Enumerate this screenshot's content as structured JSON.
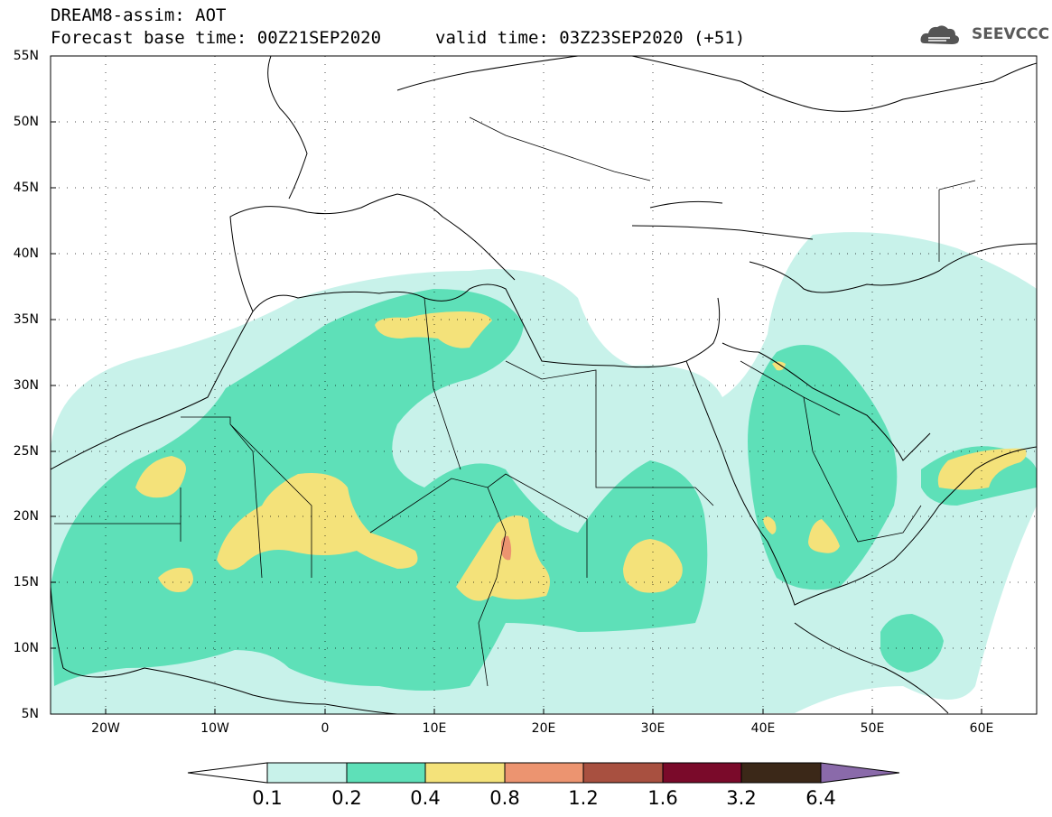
{
  "header": {
    "title": "DREAM8-assim: AOT",
    "base_time": "Forecast base time: 00Z21SEP2020",
    "valid_time": "valid time: 03Z23SEP2020 (+51)",
    "logo_text": "SEEVCCC"
  },
  "map": {
    "lat_labels": [
      "55N",
      "50N",
      "45N",
      "40N",
      "35N",
      "30N",
      "25N",
      "20N",
      "15N",
      "10N",
      "5N"
    ],
    "lon_labels": [
      "20W",
      "10W",
      "0",
      "10E",
      "20E",
      "30E",
      "40E",
      "50E",
      "60E"
    ],
    "lon_range": [
      -25,
      65
    ],
    "lat_range": [
      5,
      55
    ],
    "grid": "dotted"
  },
  "colorbar": {
    "labels": [
      "0.1",
      "0.2",
      "0.4",
      "0.8",
      "1.2",
      "1.6",
      "3.2",
      "6.4"
    ],
    "colors": [
      "#c8f2ea",
      "#5ee0b8",
      "#f4e27a",
      "#ec9470",
      "#a85040",
      "#7a0a2a",
      "#3b2818",
      "#8a6aaa"
    ]
  }
}
